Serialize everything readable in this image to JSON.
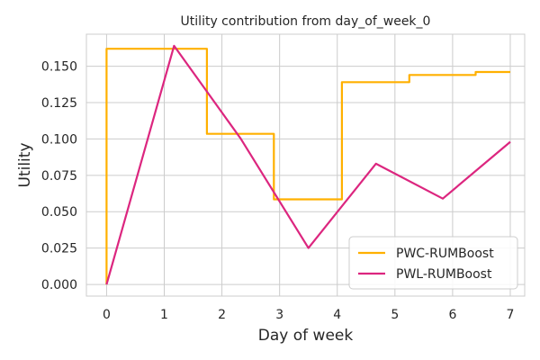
{
  "chart_data": {
    "type": "line",
    "title": "Utility contribution from day_of_week_0",
    "xlabel": "Day of week",
    "ylabel": "Utility",
    "xlim": [
      -0.35,
      7.25
    ],
    "ylim": [
      -0.008,
      0.172
    ],
    "x_ticks": [
      0,
      1,
      2,
      3,
      4,
      5,
      6,
      7
    ],
    "x_tick_labels": [
      "0",
      "1",
      "2",
      "3",
      "4",
      "5",
      "6",
      "7"
    ],
    "y_ticks": [
      0.0,
      0.025,
      0.05,
      0.075,
      0.1,
      0.125,
      0.15
    ],
    "y_tick_labels": [
      "0.000",
      "0.025",
      "0.050",
      "0.075",
      "0.100",
      "0.125",
      "0.150"
    ],
    "grid": true,
    "legend_position": "bottom-right",
    "series": [
      {
        "name": "PWC-RUMBoost",
        "color": "#FFB000",
        "points": [
          [
            0,
            0.0
          ],
          [
            0,
            0.162
          ],
          [
            1.74,
            0.162
          ],
          [
            1.74,
            0.1035
          ],
          [
            2.9,
            0.1035
          ],
          [
            2.9,
            0.0585
          ],
          [
            4.08,
            0.0585
          ],
          [
            4.08,
            0.139
          ],
          [
            5.25,
            0.139
          ],
          [
            5.25,
            0.144
          ],
          [
            6.4,
            0.144
          ],
          [
            6.4,
            0.146
          ],
          [
            7.0,
            0.146
          ]
        ]
      },
      {
        "name": "PWL-RUMBoost",
        "color": "#DC267F",
        "points": [
          [
            0,
            0.0
          ],
          [
            1.17,
            0.164
          ],
          [
            2.33,
            0.1
          ],
          [
            3.5,
            0.025
          ],
          [
            4.67,
            0.083
          ],
          [
            5.83,
            0.059
          ],
          [
            7.0,
            0.098
          ]
        ]
      }
    ]
  }
}
